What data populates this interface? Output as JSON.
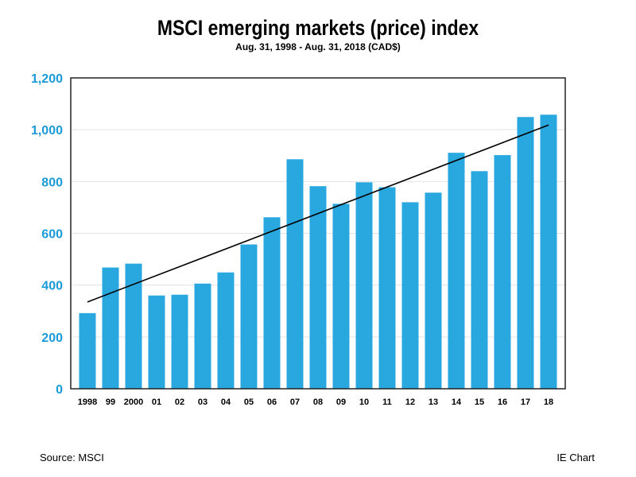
{
  "chart_data": {
    "type": "bar",
    "title": "MSCI emerging markets (price) index",
    "subtitle": "Aug. 31, 1998 - Aug. 31, 2018 (CAD$)",
    "xlabel": "",
    "ylabel": "",
    "ylim": [
      0,
      1200
    ],
    "yticks": [
      0,
      200,
      400,
      600,
      800,
      1000,
      1200
    ],
    "ytick_labels": [
      "0",
      "200",
      "400",
      "600",
      "800",
      "1,000",
      "1,200"
    ],
    "categories": [
      "1998",
      "99",
      "2000",
      "01",
      "02",
      "03",
      "04",
      "05",
      "06",
      "07",
      "08",
      "09",
      "10",
      "11",
      "12",
      "13",
      "14",
      "15",
      "16",
      "17",
      "18"
    ],
    "values": [
      292,
      468,
      483,
      360,
      363,
      406,
      449,
      557,
      662,
      886,
      782,
      714,
      797,
      778,
      720,
      757,
      911,
      840,
      902,
      1049,
      1058
    ],
    "trendline": {
      "start": 335,
      "end": 1018
    },
    "grid": true,
    "bar_color": "#29a8e0",
    "axis_label_color": "#1a9ad9"
  },
  "footer": {
    "source": "Source: MSCI",
    "credit": "IE Chart"
  }
}
